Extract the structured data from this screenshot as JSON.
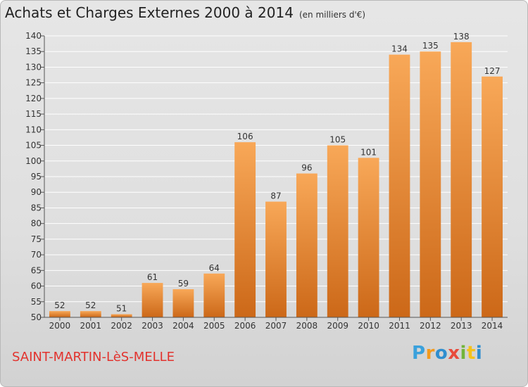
{
  "header": {
    "title": "Achats et Charges Externes 2000 à 2014",
    "unit": "(en milliers d'€)"
  },
  "footer": {
    "commune": "SAINT-MARTIN-LèS-MELLE",
    "logo_letters": [
      "P",
      "r",
      "o",
      "x",
      "i",
      "t",
      "i"
    ]
  },
  "colors": {
    "bar_top": "#f8a858",
    "bar_bottom": "#cc6818",
    "grid": "#ffffff"
  },
  "chart_data": {
    "type": "bar",
    "categories": [
      "2000",
      "2001",
      "2002",
      "2003",
      "2004",
      "2005",
      "2006",
      "2007",
      "2008",
      "2009",
      "2010",
      "2011",
      "2012",
      "2013",
      "2014"
    ],
    "values": [
      52,
      52,
      51,
      61,
      59,
      64,
      106,
      87,
      96,
      105,
      101,
      134,
      135,
      138,
      127
    ],
    "title": "Achats et Charges Externes 2000 à 2014",
    "ylim": [
      50,
      140
    ],
    "yticks": [
      50,
      55,
      60,
      65,
      70,
      75,
      80,
      85,
      90,
      95,
      100,
      105,
      110,
      115,
      120,
      125,
      130,
      135,
      140
    ],
    "grid": "horizontal",
    "legend": "none"
  }
}
